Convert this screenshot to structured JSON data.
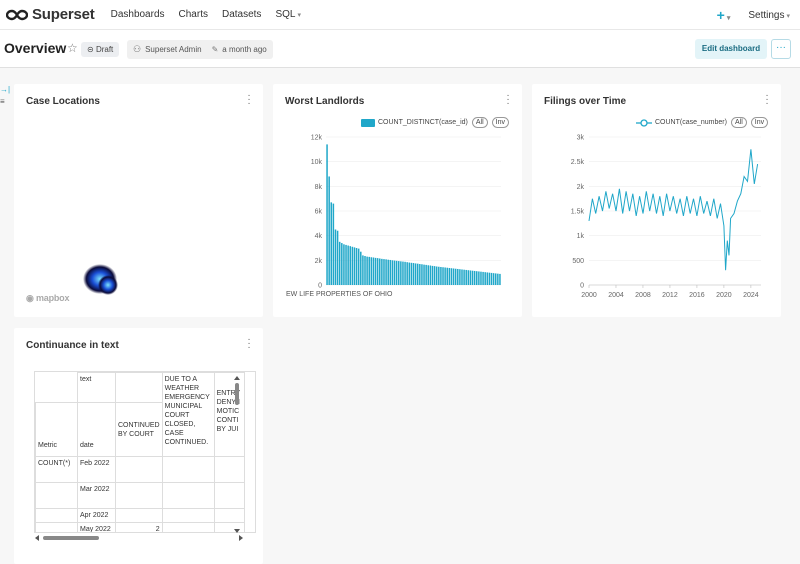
{
  "nav": {
    "brand": "Superset",
    "links": [
      "Dashboards",
      "Charts",
      "Datasets",
      "SQL"
    ],
    "plus": "+",
    "settings": "Settings"
  },
  "header": {
    "title": "Overview",
    "badge": "Draft",
    "owner": "Superset Admin",
    "modified": "a month ago",
    "edit_label": "Edit dashboard",
    "more_label": "···"
  },
  "colors": {
    "accent": "#20a7c9",
    "bar": "#20a7c9",
    "line": "#20a7c9"
  },
  "cards": {
    "map": {
      "title": "Case Locations",
      "mapbox": "mapbox"
    },
    "landlords": {
      "title": "Worst Landlords",
      "legend": "COUNT_DISTINCT(case_id)",
      "all": "All",
      "inv": "Inv"
    },
    "filings": {
      "title": "Filings over Time",
      "legend": "COUNT(case_number)",
      "all": "All",
      "inv": "Inv"
    },
    "continuance": {
      "title": "Continuance in text"
    }
  },
  "chart_data": [
    {
      "type": "bar",
      "title": "Worst Landlords",
      "series": [
        {
          "name": "COUNT_DISTINCT(case_id)"
        }
      ],
      "ylim": [
        0,
        12000
      ],
      "yticks": [
        "12k",
        "10k",
        "8k",
        "6k",
        "4k",
        "2k",
        "0"
      ],
      "x_label_visible": "EW LIFE PROPERTIES OF OHIO",
      "values": [
        11400,
        8800,
        6700,
        6600,
        4500,
        4400,
        3500,
        3400,
        3300,
        3250,
        3200,
        3150,
        3100,
        3050,
        3000,
        2950,
        2700,
        2400,
        2350,
        2300,
        2280,
        2250,
        2230,
        2200,
        2180,
        2150,
        2120,
        2100,
        2080,
        2050,
        2030,
        2000,
        1980,
        1960,
        1940,
        1920,
        1900,
        1880,
        1850,
        1820,
        1800,
        1780,
        1750,
        1730,
        1700,
        1680,
        1650,
        1630,
        1600,
        1580,
        1550,
        1530,
        1500,
        1480,
        1460,
        1440,
        1420,
        1400,
        1380,
        1360,
        1340,
        1320,
        1300,
        1280,
        1260,
        1240,
        1220,
        1200,
        1180,
        1160,
        1140,
        1120,
        1100,
        1080,
        1060,
        1040,
        1020,
        1000,
        980,
        960,
        940,
        920,
        900
      ]
    },
    {
      "type": "line",
      "title": "Filings over Time",
      "series": [
        {
          "name": "COUNT(case_number)"
        }
      ],
      "ylim": [
        0,
        3000
      ],
      "yticks": [
        "3k",
        "2.5k",
        "2k",
        "1.5k",
        "1k",
        "500",
        "0"
      ],
      "xticks": [
        "2000",
        "2004",
        "2008",
        "2012",
        "2016",
        "2020",
        "2024"
      ],
      "xlim": [
        2000,
        2025.5
      ],
      "x": [
        2000,
        2000.5,
        2001,
        2001.5,
        2002,
        2002.5,
        2003,
        2003.5,
        2004,
        2004.5,
        2005,
        2005.5,
        2006,
        2006.5,
        2007,
        2007.5,
        2008,
        2008.5,
        2009,
        2009.5,
        2010,
        2010.5,
        2011,
        2011.5,
        2012,
        2012.5,
        2013,
        2013.5,
        2014,
        2014.5,
        2015,
        2015.5,
        2016,
        2016.5,
        2017,
        2017.5,
        2018,
        2018.5,
        2019,
        2019.5,
        2020,
        2020.25,
        2020.5,
        2020.75,
        2021,
        2021.5,
        2022,
        2022.5,
        2023,
        2023.5,
        2024,
        2024.5,
        2025
      ],
      "y": [
        1300,
        1750,
        1450,
        1800,
        1500,
        1900,
        1550,
        1850,
        1500,
        1950,
        1450,
        1900,
        1500,
        1850,
        1400,
        1800,
        1450,
        1900,
        1500,
        1850,
        1450,
        1800,
        1400,
        1850,
        1500,
        1800,
        1450,
        1750,
        1400,
        1800,
        1450,
        1750,
        1400,
        1800,
        1450,
        1700,
        1400,
        1750,
        1350,
        1650,
        1200,
        300,
        900,
        600,
        1350,
        1450,
        1700,
        1850,
        2200,
        2100,
        2750,
        2050,
        2450
      ]
    }
  ],
  "table": {
    "header1": [
      "",
      "text",
      "",
      "DUE TO A WEATHER EMERGENCY MUNICIPAL COURT CLOSED, CASE CONTINUED.",
      "ENTRY DENYII MOTIC CONTI BY JUI"
    ],
    "header2": [
      "Metric",
      "date",
      "CONTINUED BY COURT",
      "",
      ""
    ],
    "rows": [
      [
        "COUNT(*)",
        "Feb 2022",
        "",
        "",
        ""
      ],
      [
        "",
        "Mar 2022",
        "",
        "",
        ""
      ],
      [
        "",
        "Apr 2022",
        "",
        "",
        ""
      ],
      [
        "",
        "May 2022",
        "2",
        "",
        ""
      ]
    ]
  }
}
